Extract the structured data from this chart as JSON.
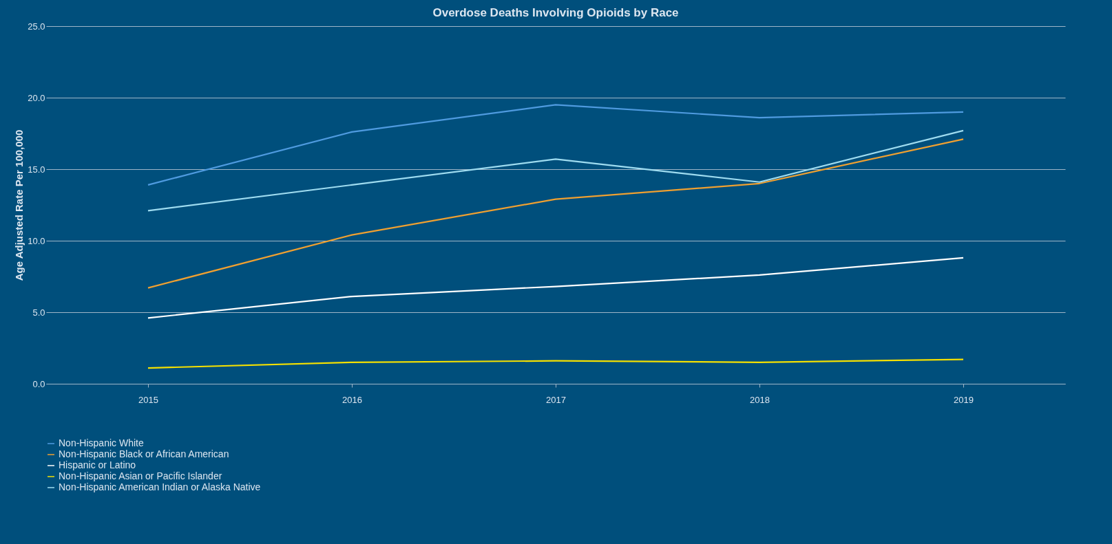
{
  "chart_data": {
    "type": "line",
    "title": "Overdose Deaths Involving Opioids by Race",
    "ylabel": "Age Adjusted Rate Per 100,000",
    "categories": [
      "2015",
      "2016",
      "2017",
      "2018",
      "2019"
    ],
    "ylim": [
      0,
      25
    ],
    "yticks": [
      {
        "value": 0,
        "label": "0.0"
      },
      {
        "value": 5,
        "label": "5.0"
      },
      {
        "value": 10,
        "label": "10.0"
      },
      {
        "value": 15,
        "label": "15.0"
      },
      {
        "value": 20,
        "label": "20.0"
      },
      {
        "value": 25,
        "label": "25.0"
      }
    ],
    "grid": "y",
    "legend": "bottom",
    "marker": "none",
    "line_style": "solid",
    "series": [
      {
        "name": "Non-Hispanic White",
        "color": "#4f9be0",
        "values": [
          13.9,
          17.6,
          19.5,
          18.6,
          19.0
        ]
      },
      {
        "name": "Non-Hispanic Black or African American",
        "color": "#f0a030",
        "values": [
          6.7,
          10.4,
          12.9,
          14.0,
          17.1
        ]
      },
      {
        "name": "Hispanic or Latino",
        "color": "#ffffff",
        "values": [
          4.6,
          6.1,
          6.8,
          7.6,
          8.8
        ]
      },
      {
        "name": "Non-Hispanic Asian or Pacific Islander",
        "color": "#f5e000",
        "values": [
          1.1,
          1.5,
          1.6,
          1.5,
          1.7
        ]
      },
      {
        "name": "Non-Hispanic American Indian or Alaska Native",
        "color": "#9fdcf0",
        "values": [
          12.1,
          13.9,
          15.7,
          14.1,
          17.7
        ]
      }
    ]
  }
}
